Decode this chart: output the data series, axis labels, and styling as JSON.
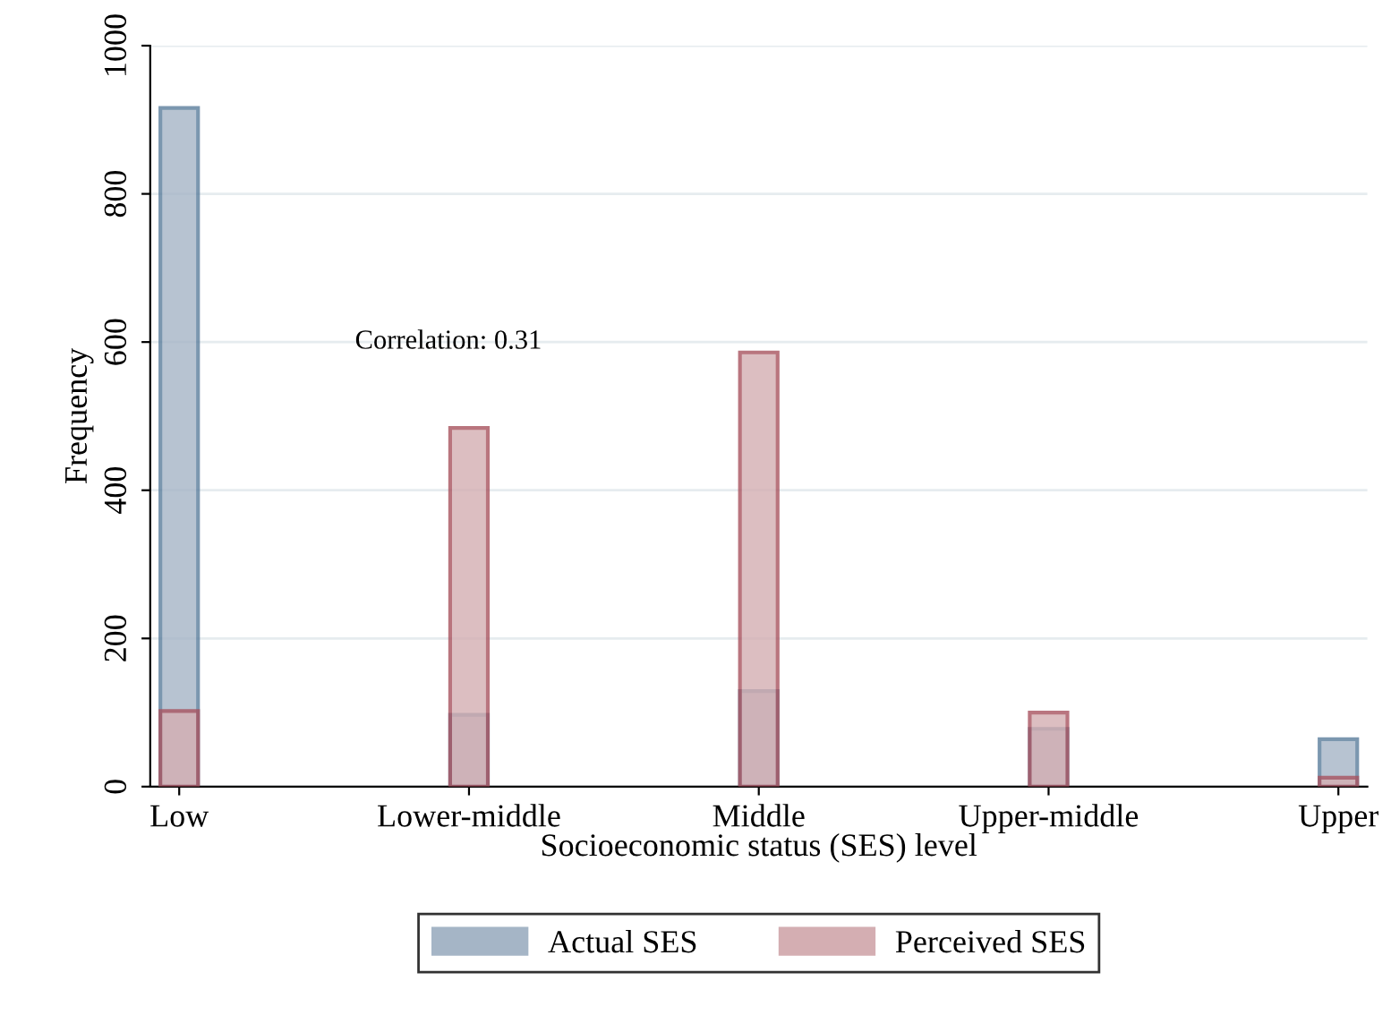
{
  "chart_data": {
    "type": "bar",
    "xlabel": "Socioeconomic status (SES) level",
    "ylabel": "Frequency",
    "categories": [
      "Low",
      "Lower-middle",
      "Middle",
      "Upper-middle",
      "Upper"
    ],
    "series": [
      {
        "name": "Actual SES",
        "color": "#a5b5c6",
        "values": [
          916,
          97,
          129,
          78,
          64
        ]
      },
      {
        "name": "Perceived SES",
        "color": "#d4aeb2",
        "values": [
          102,
          484,
          586,
          100,
          12
        ]
      }
    ],
    "ylim": [
      0,
      1000
    ],
    "yticks": [
      0,
      200,
      400,
      600,
      800,
      1000
    ],
    "grid": "y",
    "legend": "bottom",
    "annotations": [
      "Correlation: 0.31"
    ]
  }
}
